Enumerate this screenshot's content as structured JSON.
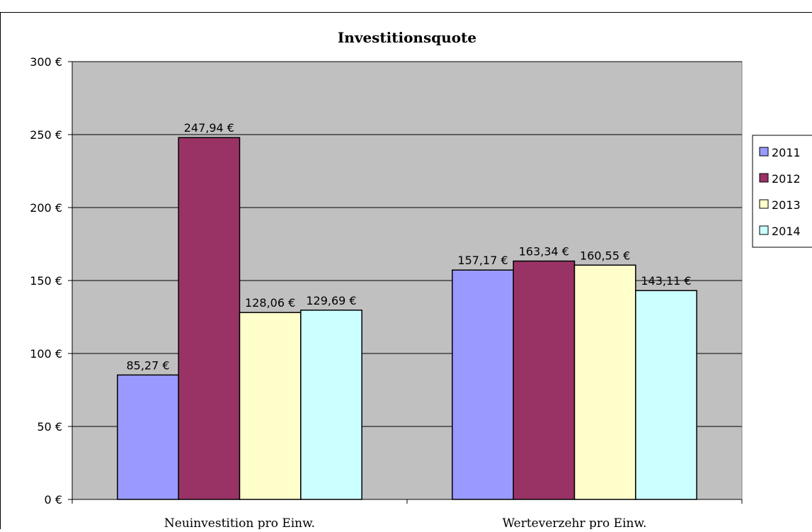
{
  "chart_data": {
    "type": "bar",
    "title": "Investitionsquote",
    "xlabel": "",
    "ylabel": "",
    "categories": [
      "Neuinvestition pro Einw.",
      "Werteverzehr pro Einw."
    ],
    "series": [
      {
        "name": "2011",
        "values": [
          85.27,
          157.17
        ],
        "labels": [
          "85,27 €",
          "157,17 €"
        ],
        "color": "#9999FF"
      },
      {
        "name": "2012",
        "values": [
          247.94,
          163.34
        ],
        "labels": [
          "247,94 €",
          "163,34 €"
        ],
        "color": "#993366"
      },
      {
        "name": "2013",
        "values": [
          128.06,
          160.55
        ],
        "labels": [
          "128,06 €",
          "160,55 €"
        ],
        "color": "#FFFFCC"
      },
      {
        "name": "2014",
        "values": [
          129.69,
          143.11
        ],
        "labels": [
          "129,69 €",
          "143,11 €"
        ],
        "color": "#CCFFFF"
      }
    ],
    "ylim": [
      0,
      300
    ],
    "yticks": [
      0,
      50,
      100,
      150,
      200,
      250,
      300
    ],
    "ytick_labels": [
      "0 €",
      "50 €",
      "100 €",
      "150 €",
      "200 €",
      "250 €",
      "300 €"
    ],
    "grid": true,
    "legend_position": "right",
    "colors": {
      "plot_background": "#C0C0C0",
      "gridline": "#000000"
    }
  }
}
